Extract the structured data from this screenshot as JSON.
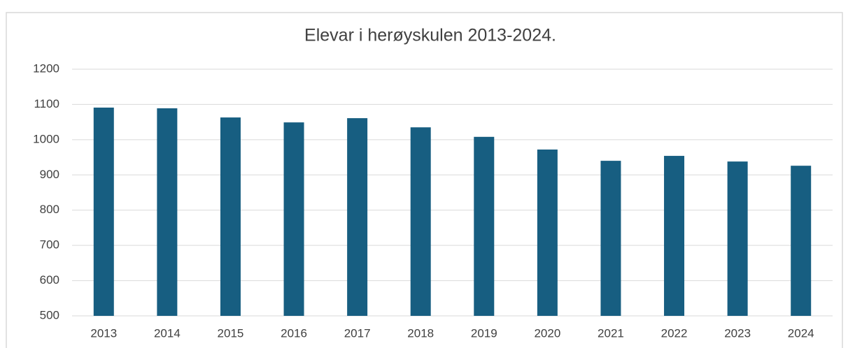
{
  "chart_data": {
    "type": "bar",
    "title": "Elevar i herøyskulen 2013-2024.",
    "categories": [
      "2013",
      "2014",
      "2015",
      "2016",
      "2017",
      "2018",
      "2019",
      "2020",
      "2021",
      "2022",
      "2023",
      "2024"
    ],
    "values": [
      1091,
      1089,
      1063,
      1049,
      1061,
      1035,
      1008,
      972,
      940,
      954,
      938,
      926
    ],
    "color": "#175e81",
    "ylim": [
      500,
      1200
    ],
    "yticks": [
      500,
      600,
      700,
      800,
      900,
      1000,
      1100,
      1200
    ],
    "grid": true
  }
}
